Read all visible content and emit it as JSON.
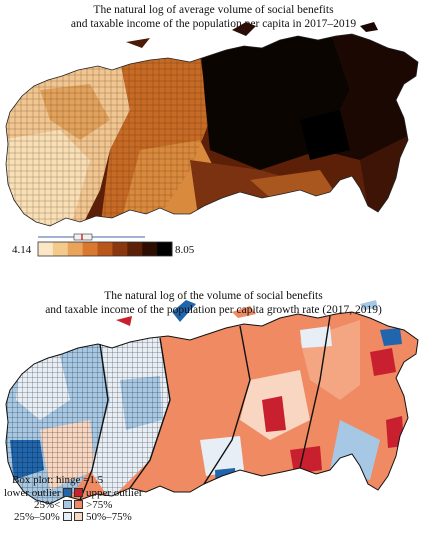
{
  "map1": {
    "title_line1": "The natural log of average volume of social benefits",
    "title_line2": "and taxable income of the population per capita in 2017–2019",
    "legend_min": "4.14",
    "legend_max": "8.05",
    "scale_colors": [
      "#fbe6c6",
      "#f4c98c",
      "#e9a35a",
      "#d9782f",
      "#b9561a",
      "#8a3710",
      "#5c2008",
      "#2e0e03",
      "#000000"
    ]
  },
  "map2": {
    "title_line1": "The natural log of the volume of social benefits",
    "title_line2": "and taxable income of the population per capita growth rate (2017, 2019)",
    "legend": {
      "heading": "Box plot: hinge =1.5",
      "items": [
        {
          "label": "lower outlier",
          "color": "#2166ac"
        },
        {
          "label": "upper outlier",
          "color": "#c8202f"
        },
        {
          "label": "25%<",
          "color": "#a7c8e4"
        },
        {
          "label": ">75%",
          "color": "#ef8a62"
        },
        {
          "label": "25%–50%",
          "color": "#e7eef6"
        },
        {
          "label": "50%–75%",
          "color": "#f8d6c1"
        }
      ]
    }
  }
}
